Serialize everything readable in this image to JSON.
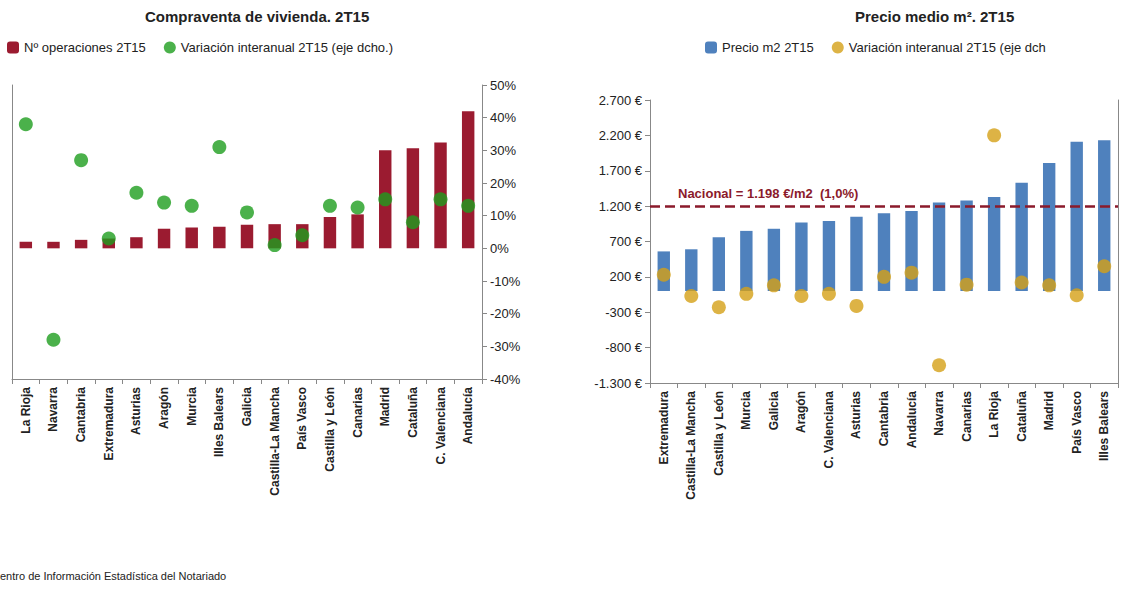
{
  "chart_data": [
    {
      "type": "bar",
      "title": "Compraventa de vivienda. 2T15",
      "categories": [
        "La Rioja",
        "Navarra",
        "Cantabria",
        "Extremadura",
        "Asturias",
        "Aragón",
        "Murcia",
        "Illes Balears",
        "Galicia",
        "Castilla-La Mancha",
        "País Vasco",
        "Castilla y León",
        "Canarias",
        "Madrid",
        "Cataluña",
        "C. Valenciana",
        "Andalucía"
      ],
      "series": [
        {
          "name": "Nº operaciones 2T15",
          "type": "bar",
          "color": "#9b1b30",
          "values": [
            1000,
            1000,
            1300,
            1500,
            1700,
            3000,
            3200,
            3300,
            3600,
            3700,
            3700,
            4800,
            5200,
            15000,
            15300,
            16200,
            21000
          ]
        },
        {
          "name": "Variación interanual 2T15 (eje dcho.)",
          "type": "scatter",
          "color": "#1e9e1e",
          "marker": "circle",
          "axis": "y2",
          "values": [
            38,
            -28,
            27,
            3,
            17,
            14,
            13,
            31,
            11,
            1,
            4,
            13,
            12.5,
            15,
            8,
            15,
            13
          ]
        }
      ],
      "ylim": [
        -20000,
        25000
      ],
      "y2lim": [
        -40,
        50
      ],
      "y2ticks": [
        {
          "value": -40,
          "label": "-40%"
        },
        {
          "value": -30,
          "label": "-30%"
        },
        {
          "value": -20,
          "label": "-20%"
        },
        {
          "value": -10,
          "label": "-10%"
        },
        {
          "value": 0,
          "label": "0%"
        },
        {
          "value": 10,
          "label": "10%"
        },
        {
          "value": 20,
          "label": "20%"
        },
        {
          "value": 30,
          "label": "30%"
        },
        {
          "value": 40,
          "label": "40%"
        },
        {
          "value": 50,
          "label": "50%"
        }
      ],
      "grid": false,
      "legend": "top"
    },
    {
      "type": "bar",
      "title": "Precio medio m². 2T15",
      "categories": [
        "Extremadura",
        "Castilla-La Mancha",
        "Castilla y León",
        "Murcia",
        "Galicia",
        "Aragón",
        "C. Valenciana",
        "Asturias",
        "Cantabria",
        "Andalucía",
        "Navarra",
        "Canarias",
        "La Rioja",
        "Cataluña",
        "Madrid",
        "País Vasco",
        "Illes Balears"
      ],
      "series": [
        {
          "name": "Precio m2 2T15",
          "type": "bar",
          "color": "#4f81bd",
          "values": [
            560,
            590,
            760,
            850,
            880,
            970,
            990,
            1050,
            1100,
            1130,
            1250,
            1280,
            1330,
            1530,
            1810,
            2110,
            2130
          ]
        },
        {
          "name": "Variación interanual 2T15 (eje dch",
          "type": "scatter",
          "color": "#d4a017",
          "marker": "circle",
          "axis": "y2",
          "values": [
            2.3,
            -0.7,
            -2.3,
            -0.4,
            0.8,
            -0.7,
            -0.4,
            -2.1,
            2.0,
            2.6,
            -10.5,
            0.9,
            22.0,
            1.2,
            0.8,
            -0.6,
            3.5
          ]
        }
      ],
      "ylim": [
        -1300,
        2700
      ],
      "yticks": [
        {
          "value": -1300,
          "label": "-1.300 €"
        },
        {
          "value": -800,
          "label": "-800 €"
        },
        {
          "value": -300,
          "label": "-300 €"
        },
        {
          "value": 200,
          "label": "200 €"
        },
        {
          "value": 700,
          "label": "700 €"
        },
        {
          "value": 1200,
          "label": "1.200 €"
        },
        {
          "value": 1700,
          "label": "1.700 €"
        },
        {
          "value": 2200,
          "label": "2.200 €"
        },
        {
          "value": 2700,
          "label": "2.700 €"
        }
      ],
      "y2lim": [
        -13,
        27
      ],
      "annotation": {
        "value": 1198,
        "text": "Nacional = 1.198 €/m2  (1,0%)"
      },
      "grid": false,
      "legend": "top"
    }
  ],
  "source": "entro de Información Estadística del Notariado"
}
